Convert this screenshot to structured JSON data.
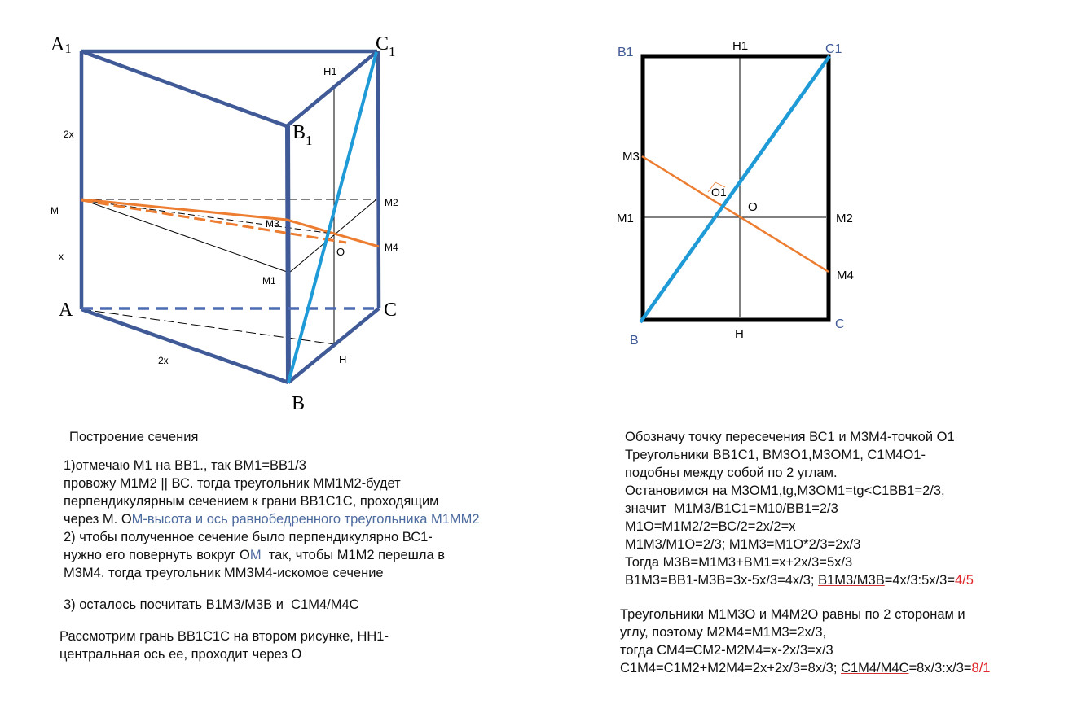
{
  "colors": {
    "edge": "#3f5a96",
    "diagonal": "#1e9ad6",
    "section": "#ed7d31",
    "text_blue": "#4d6b9e",
    "answer_red": "#e0262a"
  },
  "prism": {
    "vertices": {
      "A1": "A",
      "A1_sub": "1",
      "C1": "C",
      "C1_sub": "1",
      "B1": "B",
      "B1_sub": "1",
      "A": "A",
      "B": "B",
      "C": "C"
    },
    "points": {
      "H1": "H1",
      "H": "H",
      "M": "M",
      "M1": "M1",
      "M2": "M2",
      "M3": "M3",
      "M4": "M4",
      "O": "O"
    },
    "lengths": {
      "edge_upper": "2x",
      "edge_lower": "x",
      "base": "2x"
    }
  },
  "face": {
    "labels": {
      "B1": "B1",
      "C1": "C1",
      "B": "B",
      "C": "C",
      "H1": "H1",
      "H": "H",
      "M1": "M1",
      "M2": "M2",
      "M3": "M3",
      "M4": "M4",
      "O": "O",
      "O1": "O1"
    }
  },
  "left_text": [
    [
      {
        "t": "Построение сечения"
      }
    ],
    [
      {
        "t": "1)отмечаю М1 на ВВ1., так ВМ1=ВВ1/3"
      }
    ],
    [
      {
        "t": "провожу М1М2 || ВС. тогда треугольник ММ1М2-будет"
      }
    ],
    [
      {
        "t": "перпендикулярным сечением к грани ВВ1С1С, проходящим"
      }
    ],
    [
      {
        "t": "через М. О"
      },
      {
        "t": "М-высота и ось равнобедренного треугольника М1ММ2",
        "s": "blue"
      }
    ],
    [
      {
        "t": "2) чтобы полученное сечение было перпендикулярно ВС1-"
      }
    ],
    [
      {
        "t": "нужно его повернуть вокруг О"
      },
      {
        "t": "М",
        "s": "blue"
      },
      {
        "t": "  так, чтобы М1М2 перешла в"
      }
    ],
    [
      {
        "t": "М3М4. тогда треугольник ММ3М4-искомое сечение"
      }
    ],
    [
      {
        "t": "3) осталось посчитать В1М3/М3В и  С1М4/М4С"
      }
    ],
    [
      {
        "t": "Рассмотрим грань ВВ1С1С на втором рисунке, НН1-"
      }
    ],
    [
      {
        "t": "центральная ось ее, проходит через О"
      }
    ]
  ],
  "right_text": [
    [
      {
        "t": "Обозначу точку пересечения ВС1 и М3М4-точкой О1"
      }
    ],
    [
      {
        "t": "Треугольники ВВ1С1, ВМ3О1,М3ОМ1, С1М4О1-"
      }
    ],
    [
      {
        "t": "подобны между собой по 2 углам."
      }
    ],
    [
      {
        "t": "Остановимся на М3ОМ1,tg,М3ОМ1=tg<C1BB1=2/3,"
      }
    ],
    [
      {
        "t": "значит  М1М3/В1С1=М10/ВВ1=2/3"
      }
    ],
    [
      {
        "t": "М1О=М1М2/2=ВС/2=2х/2=х"
      }
    ],
    [
      {
        "t": "М1М3/М1О=2/3; М1М3=М1О*2/3=2х/3"
      }
    ],
    [
      {
        "t": "Тогда М3В=М1М3+ВМ1=х+2х/3=5х/3"
      }
    ],
    [
      {
        "t": "В1М3=ВВ1-М3В=3х-5х/3=4х/3; "
      },
      {
        "t": "В1М3/М3В",
        "s": "ul"
      },
      {
        "t": "=4х/3:5х/3="
      },
      {
        "t": "4/5",
        "s": "red"
      }
    ],
    [
      {
        "t": "Треугольники М1М3О и М4М2О равны по 2 сторонам и"
      }
    ],
    [
      {
        "t": "углу, поэтому М2М4=М1М3=2х/3,"
      }
    ],
    [
      {
        "t": "тогда СМ4=СМ2-М2М4=х-2х/3=х/3"
      }
    ],
    [
      {
        "t": "С1М4=С1М2+М2М4=2х+2х/3=8х/3; "
      },
      {
        "t": "С1М4/М4С",
        "s": "ul"
      },
      {
        "t": "=8х/3:х/3="
      },
      {
        "t": "8/1",
        "s": "red"
      }
    ]
  ]
}
